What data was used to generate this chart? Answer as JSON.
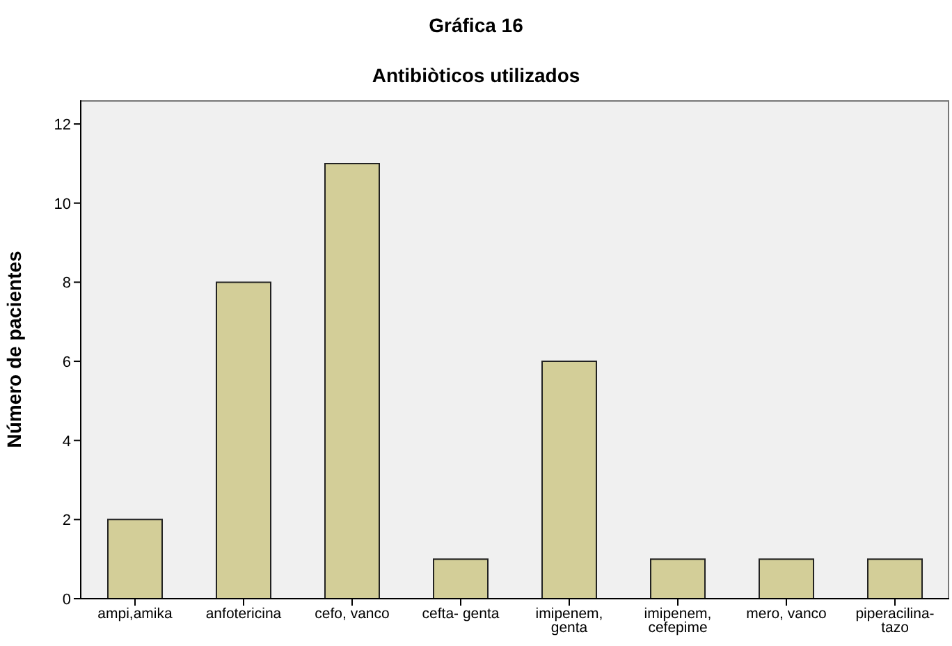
{
  "chart_data": {
    "type": "bar",
    "title": "Gráfica 16",
    "subtitle": "Antibiòticos utilizados",
    "ylabel": "Número de pacientes",
    "categories": [
      "ampi,amika",
      "anfotericina",
      "cefo, vanco",
      "cefta- genta",
      "imipenem, genta",
      "imipenem, cefepime",
      "mero, vanco",
      "piperacilina-tazo"
    ],
    "values": [
      2,
      8,
      11,
      1,
      6,
      1,
      1,
      1
    ],
    "color": "#d3ce98",
    "ylim": [
      0,
      12.6
    ],
    "yticks": [
      0,
      2,
      4,
      6,
      8,
      10,
      12
    ],
    "grid": false
  }
}
